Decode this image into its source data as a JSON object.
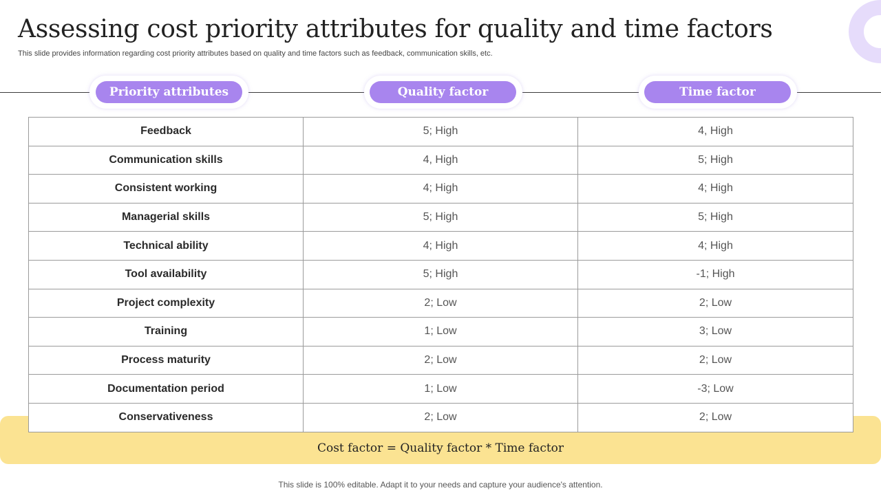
{
  "title": "Assessing cost priority attributes for quality and time factors",
  "subtitle": "This slide provides information regarding cost priority attributes based on quality and time factors such as feedback, communication skills, etc.",
  "headers": {
    "attributes": "Priority attributes",
    "quality": "Quality factor",
    "time": "Time factor"
  },
  "rows": [
    {
      "attribute": "Feedback",
      "quality": "5; High",
      "time": "4, High"
    },
    {
      "attribute": "Communication skills",
      "quality": "4, High",
      "time": "5; High"
    },
    {
      "attribute": "Consistent working",
      "quality": "4; High",
      "time": "4; High"
    },
    {
      "attribute": "Managerial skills",
      "quality": "5; High",
      "time": "5; High"
    },
    {
      "attribute": "Technical ability",
      "quality": "4; High",
      "time": "4; High"
    },
    {
      "attribute": "Tool availability",
      "quality": "5; High",
      "time": "-1; High"
    },
    {
      "attribute": "Project complexity",
      "quality": "2; Low",
      "time": "2; Low"
    },
    {
      "attribute": "Training",
      "quality": "1; Low",
      "time": "3; Low"
    },
    {
      "attribute": "Process maturity",
      "quality": "2; Low",
      "time": "2; Low"
    },
    {
      "attribute": "Documentation period",
      "quality": "1; Low",
      "time": "-3; Low"
    },
    {
      "attribute": "Conservativeness",
      "quality": "2; Low",
      "time": "2; Low"
    }
  ],
  "formula": "Cost factor = Quality factor * Time factor",
  "footer": "This slide is 100% editable. Adapt it to your needs and capture your audience's attention.",
  "colors": {
    "pill": "#a885ee",
    "band": "#fbe392",
    "ring": "#e6dcfb"
  }
}
